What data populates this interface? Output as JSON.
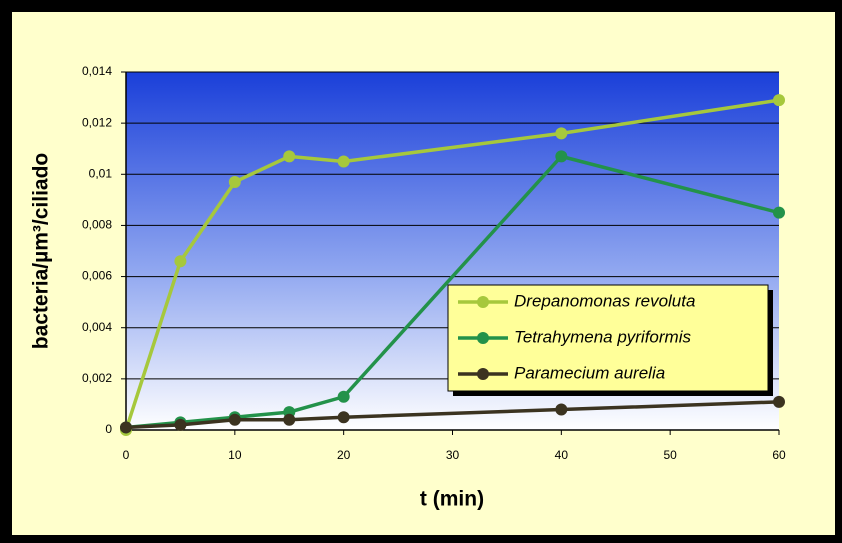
{
  "chart_data": {
    "type": "line",
    "x_label": "t (min)",
    "y_label": "bacteria/µm³/ciliado",
    "x": [
      0,
      5,
      10,
      15,
      20,
      40,
      60
    ],
    "series": [
      {
        "name": "Drepanomonas revoluta",
        "color": "#a6c83c",
        "values": [
          0,
          0.0066,
          0.0097,
          0.0107,
          0.0105,
          0.0116,
          0.0129
        ]
      },
      {
        "name": "Tetrahymena pyriformis",
        "color": "#23924a",
        "values": [
          0.0001,
          0.0003,
          0.0005,
          0.0007,
          0.0013,
          0.0107,
          0.0085
        ]
      },
      {
        "name": "Paramecium aurelia",
        "color": "#3b3320",
        "values": [
          0.0001,
          0.0002,
          0.0004,
          0.0004,
          0.0005,
          0.0008,
          0.0011
        ]
      }
    ],
    "xlim": [
      0,
      60
    ],
    "xticks": [
      0,
      10,
      20,
      30,
      40,
      50,
      60
    ],
    "ylim": [
      0,
      0.014
    ],
    "yticks": [
      0,
      {
        "value": 0.002,
        "label": "0,002"
      },
      {
        "value": 0.004,
        "label": "0,004"
      },
      {
        "value": 0.006,
        "label": "0,006"
      },
      {
        "value": 0.008,
        "label": "0,008"
      },
      {
        "value": 0.01,
        "label": "0,01"
      },
      {
        "value": 0.012,
        "label": "0,012"
      },
      {
        "value": 0.014,
        "label": "0,014"
      }
    ],
    "grid": true,
    "legend_position": "right"
  }
}
